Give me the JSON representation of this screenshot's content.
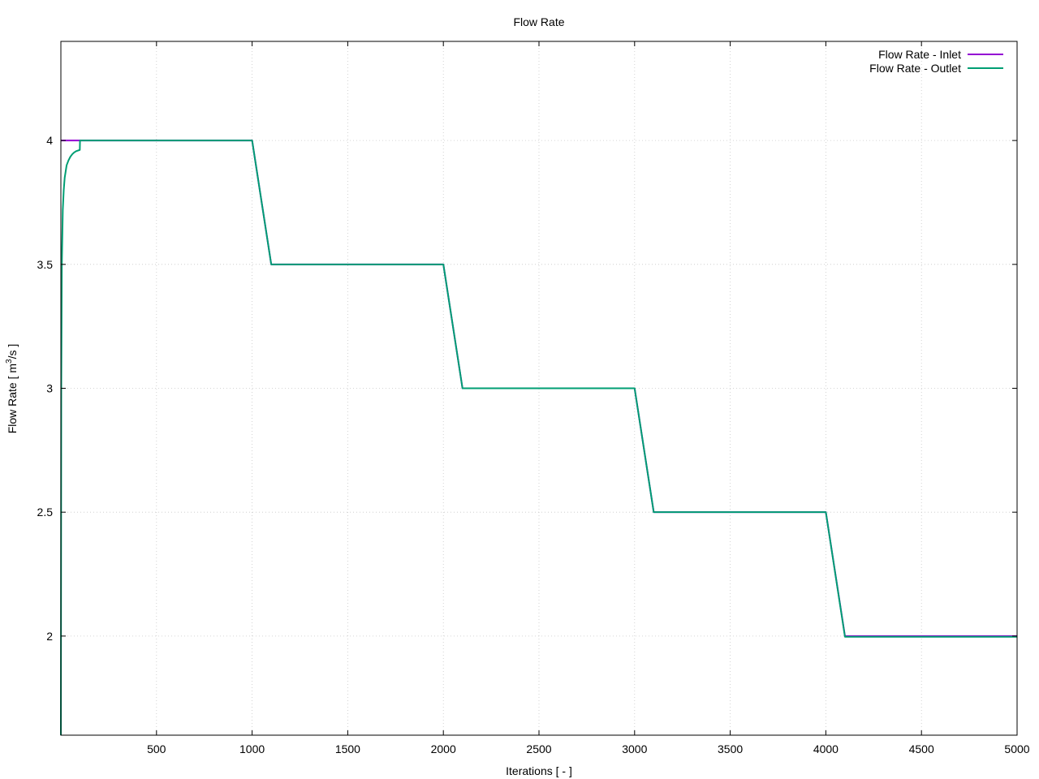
{
  "chart_data": {
    "type": "line",
    "title": "Flow Rate",
    "xlabel": "Iterations [ - ]",
    "ylabel_prefix": "Flow Rate [ m",
    "ylabel_sup": "3",
    "ylabel_suffix": "/s ]",
    "xlim": [
      0,
      5000
    ],
    "ylim": [
      1.6,
      4.4
    ],
    "x_ticks": [
      500,
      1000,
      1500,
      2000,
      2500,
      3000,
      3500,
      4000,
      4500,
      5000
    ],
    "x_tick_labels": [
      "500",
      "1000",
      "1500",
      "2000",
      "2500",
      "3000",
      "3500",
      "4000",
      "4500",
      "5000"
    ],
    "y_ticks": [
      2,
      2.5,
      3,
      3.5,
      4
    ],
    "y_tick_labels": [
      "2",
      "2.5",
      "3",
      "3.5",
      "4"
    ],
    "grid": true,
    "legend_position": "top-right",
    "series": [
      {
        "name": "Flow Rate - Inlet",
        "color": "#9400d3",
        "x": [
          0,
          1000,
          1100,
          2000,
          2100,
          3000,
          3100,
          4000,
          4100,
          5000
        ],
        "y": [
          4.0,
          4.0,
          3.5,
          3.5,
          3.0,
          3.0,
          2.5,
          2.5,
          2.0,
          2.0
        ]
      },
      {
        "name": "Flow Rate - Outlet",
        "color": "#009e73",
        "x": [
          0,
          2,
          5,
          10,
          15,
          20,
          30,
          40,
          50,
          60,
          70,
          80,
          99,
          100,
          1000,
          1100,
          2000,
          2100,
          3000,
          3100,
          4000,
          4100,
          5000
        ],
        "y": [
          1.6,
          3.0,
          3.5,
          3.72,
          3.8,
          3.85,
          3.9,
          3.92,
          3.935,
          3.945,
          3.952,
          3.957,
          3.962,
          4.0,
          4.0,
          3.5,
          3.5,
          3.0,
          3.0,
          2.5,
          2.5,
          1.997,
          1.997
        ]
      }
    ]
  }
}
